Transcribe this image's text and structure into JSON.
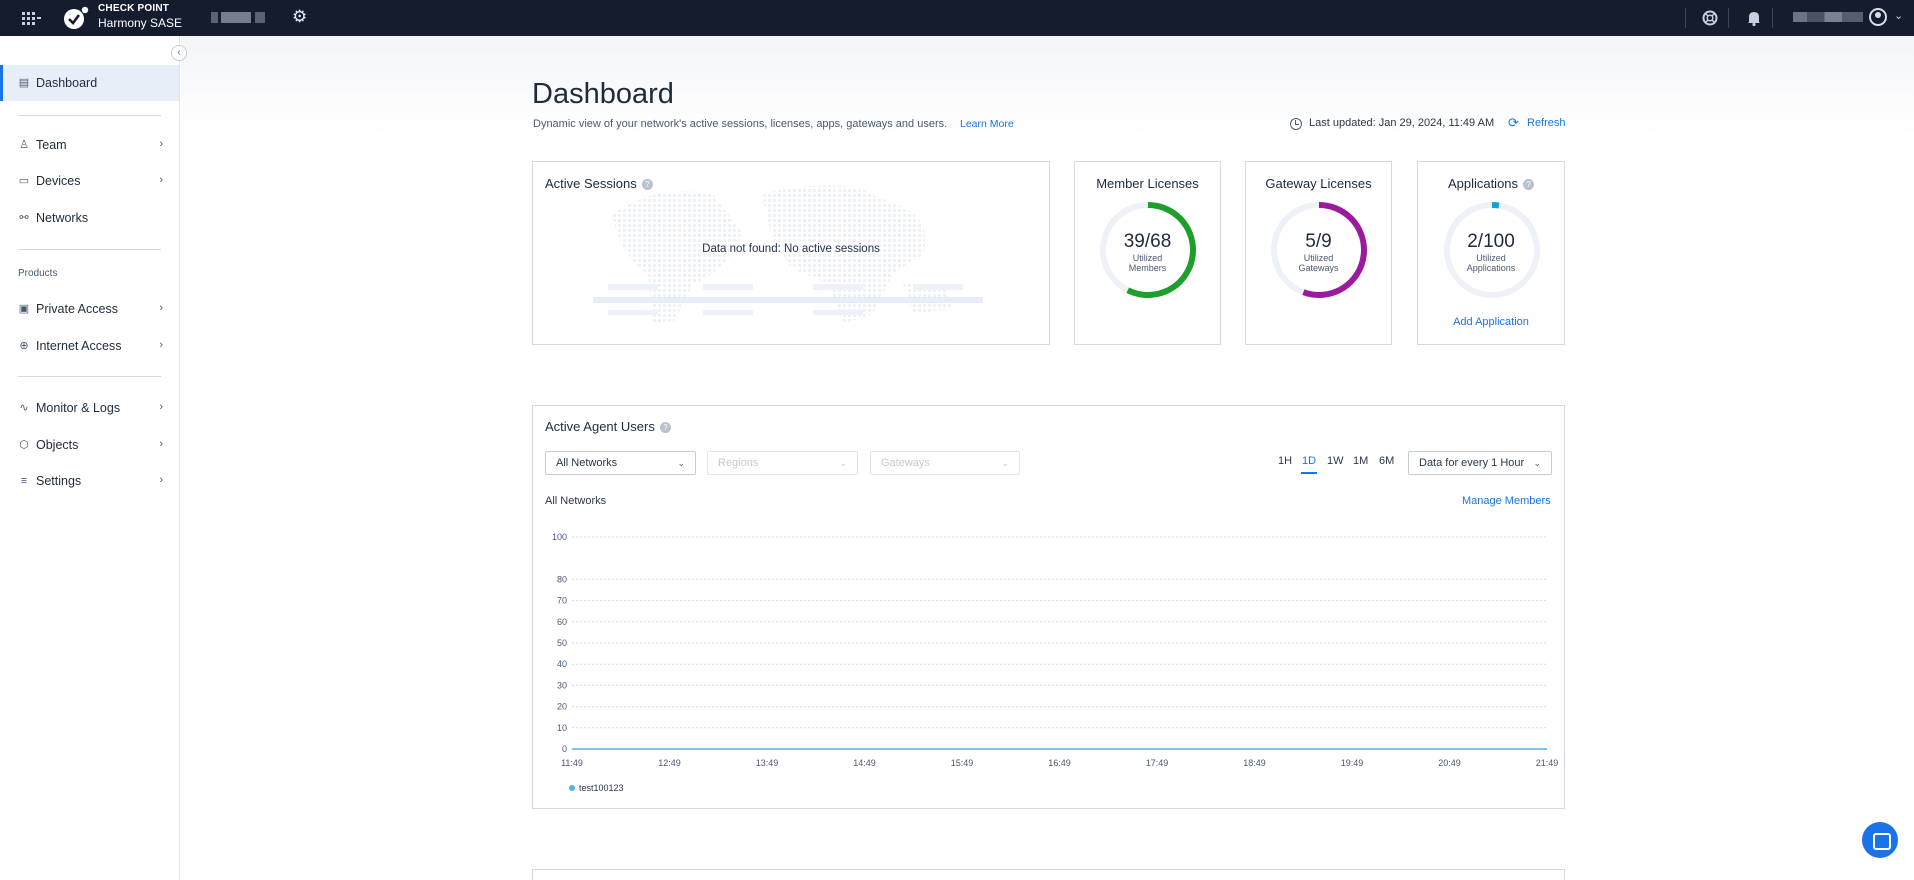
{
  "topbar": {
    "brand_top": "CHECK POINT",
    "brand_bottom": "Harmony SASE",
    "icons": [
      "apps-grid-icon",
      "settings-gear-icon",
      "support-lifebuoy-icon",
      "notifications-bell-icon",
      "user-avatar-icon",
      "chevron-down-icon"
    ]
  },
  "sidebar": {
    "items": [
      {
        "label": "Dashboard",
        "icon": "dashboard-icon"
      },
      {
        "label": "Team",
        "icon": "team-icon"
      },
      {
        "label": "Devices",
        "icon": "devices-icon"
      },
      {
        "label": "Networks",
        "icon": "networks-icon"
      },
      {
        "label": "Private Access",
        "icon": "private-access-icon"
      },
      {
        "label": "Internet Access",
        "icon": "internet-access-icon"
      },
      {
        "label": "Monitor & Logs",
        "icon": "monitor-icon"
      },
      {
        "label": "Objects",
        "icon": "objects-icon"
      },
      {
        "label": "Settings",
        "icon": "settings-icon"
      }
    ],
    "section_products": "Products"
  },
  "header": {
    "title": "Dashboard",
    "subtitle": "Dynamic view of your network's active sessions, licenses, apps, gateways and users.",
    "learn_more": "Learn More",
    "last_updated": "Last updated: Jan 29, 2024, 11:49 AM",
    "refresh": "Refresh"
  },
  "active_sessions": {
    "title": "Active Sessions",
    "empty_text": "Data not found: No active sessions"
  },
  "member_licenses": {
    "title": "Member Licenses",
    "value": "39/68",
    "label_line1": "Utilized",
    "label_line2": "Members",
    "used": 39,
    "total": 68,
    "color": "#1e9e2a"
  },
  "gateway_licenses": {
    "title": "Gateway Licenses",
    "value": "5/9",
    "label_line1": "Utilized",
    "label_line2": "Gateways",
    "used": 5,
    "total": 9,
    "color": "#9c1a9e"
  },
  "applications": {
    "title": "Applications",
    "value": "2/100",
    "label_line1": "Utilized",
    "label_line2": "Applications",
    "used": 2,
    "total": 100,
    "color": "#12a3c9",
    "add_label": "Add Application"
  },
  "agent_users": {
    "title": "Active Agent Users",
    "filter_networks": "All Networks",
    "filter_regions": "Regions",
    "filter_gateways": "Gateways",
    "ranges": [
      "1H",
      "1D",
      "1W",
      "1M",
      "6M"
    ],
    "active_range": "1D",
    "interval": "Data for every 1 Hour",
    "subtitle": "All Networks",
    "manage": "Manage Members"
  },
  "chart_data": {
    "type": "line",
    "x": [
      "11:49",
      "12:49",
      "13:49",
      "14:49",
      "15:49",
      "16:49",
      "17:49",
      "18:49",
      "19:49",
      "20:49",
      "21:49"
    ],
    "y_ticks": [
      0,
      10,
      20,
      30,
      40,
      50,
      60,
      70,
      80,
      100
    ],
    "ylim": [
      0,
      100
    ],
    "grid": true,
    "legend_position": "bottom-left",
    "series": [
      {
        "name": "test100123",
        "color": "#4fb3e8",
        "values": [
          0,
          0,
          0,
          0,
          0,
          0,
          0,
          0,
          0,
          0,
          0
        ]
      }
    ]
  }
}
